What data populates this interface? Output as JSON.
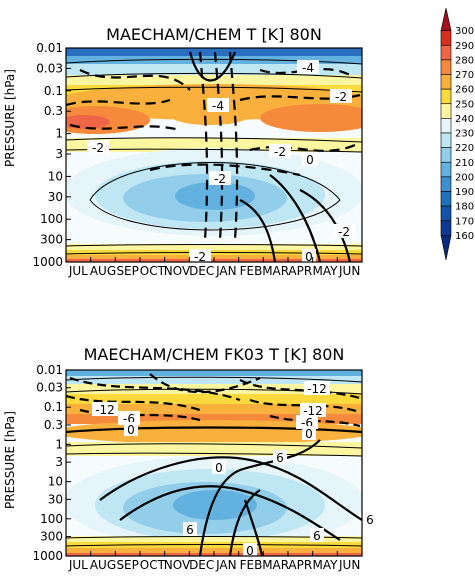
{
  "chart_data": [
    {
      "type": "heatmap",
      "title": "MAECHAM/CHEM T [K] 80N",
      "ylabel": "PRESSURE [hPa]",
      "xlabel": "",
      "x_ticks": [
        "JUL",
        "AUG",
        "SEP",
        "OCT",
        "NOV",
        "DEC",
        "JAN",
        "FEB",
        "MAR",
        "APR",
        "MAY",
        "JUN"
      ],
      "y_ticks": [
        "0.01",
        "0.03",
        "0.1",
        "0.3",
        "1",
        "3",
        "10",
        "30",
        "100",
        "300",
        "1000"
      ],
      "y_scale": "log",
      "ylim": [
        1000,
        0.01
      ],
      "contour_labels": [
        "-4",
        "-4",
        "-2",
        "-2",
        "-2",
        "0",
        "-2",
        "-2",
        "-2",
        "0"
      ]
    },
    {
      "type": "heatmap",
      "title": "MAECHAM/CHEM FK03 T [K] 80N",
      "ylabel": "PRESSURE [hPa]",
      "xlabel": "",
      "x_ticks": [
        "JUL",
        "AUG",
        "SEP",
        "OCT",
        "NOV",
        "DEC",
        "JAN",
        "FEB",
        "MAR",
        "APR",
        "MAY",
        "JUN"
      ],
      "y_ticks": [
        "0.01",
        "0.03",
        "0.1",
        "0.3",
        "1",
        "3",
        "10",
        "30",
        "100",
        "300",
        "1000"
      ],
      "y_scale": "log",
      "ylim": [
        1000,
        0.01
      ],
      "contour_labels": [
        "-12",
        "-12",
        "-12",
        "-6",
        "-6",
        "0",
        "0",
        "6",
        "0",
        "6",
        "6",
        "6",
        "0"
      ]
    }
  ],
  "colorbar": {
    "values": [
      "300",
      "290",
      "280",
      "270",
      "260",
      "250",
      "240",
      "230",
      "220",
      "210",
      "200",
      "190",
      "180",
      "170",
      "160"
    ],
    "colors": [
      "#a50f15",
      "#d7301f",
      "#ef6548",
      "#f58a3c",
      "#f9b03c",
      "#fcd93c",
      "#fdf6a0",
      "#e6f5f9",
      "#bfe6f3",
      "#92cde9",
      "#62b1de",
      "#3a91d1",
      "#2070c0",
      "#1552ab",
      "#0d3896",
      "#0a2a80"
    ]
  }
}
